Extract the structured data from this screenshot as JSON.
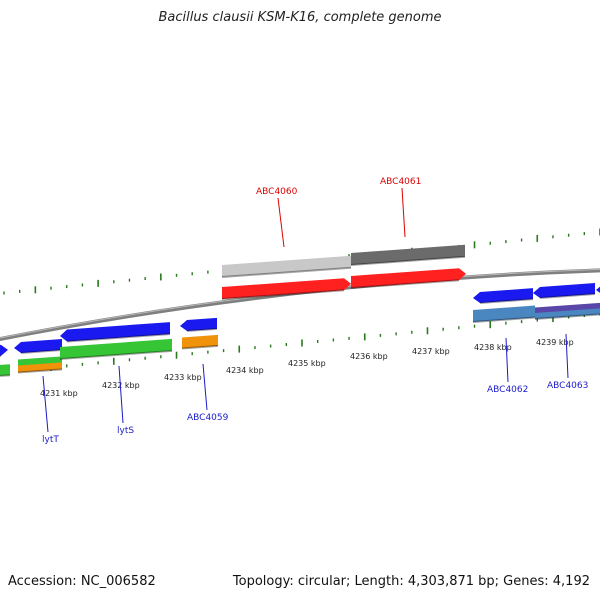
{
  "title": "Bacillus clausii KSM-K16, complete genome",
  "footer": {
    "accession": "Accession: NC_006582",
    "summary": "Topology: circular; Length: 4,303,871 bp; Genes: 4,192"
  },
  "colors": {
    "tick": "#2a7a1e",
    "backbone": "#7f7f7f",
    "forward_label": "#dd0000",
    "reverse_label": "#1a1acc",
    "gene_red": "#ff2020",
    "gene_blue": "#1a1af0",
    "gene_green": "#35c535",
    "gene_orange": "#f0920a",
    "gene_steelblue": "#4a86c0",
    "gene_purple": "#5a46a8",
    "gene_lightgray": "#c8c8c8",
    "gene_darkgray": "#6b6b6b"
  },
  "scale_labels": [
    "4231 kbp",
    "4232 kbp",
    "4233 kbp",
    "4234 kbp",
    "4235 kbp",
    "4236 kbp",
    "4237 kbp",
    "4238 kbp",
    "4239 kbp"
  ],
  "gene_labels": [
    {
      "name": "ABC4060",
      "strand": "forward"
    },
    {
      "name": "ABC4061",
      "strand": "forward"
    },
    {
      "name": "lytT",
      "strand": "reverse"
    },
    {
      "name": "lytS",
      "strand": "reverse"
    },
    {
      "name": "ABC4059",
      "strand": "reverse"
    },
    {
      "name": "ABC4062",
      "strand": "reverse"
    },
    {
      "name": "ABC4063",
      "strand": "reverse"
    }
  ]
}
